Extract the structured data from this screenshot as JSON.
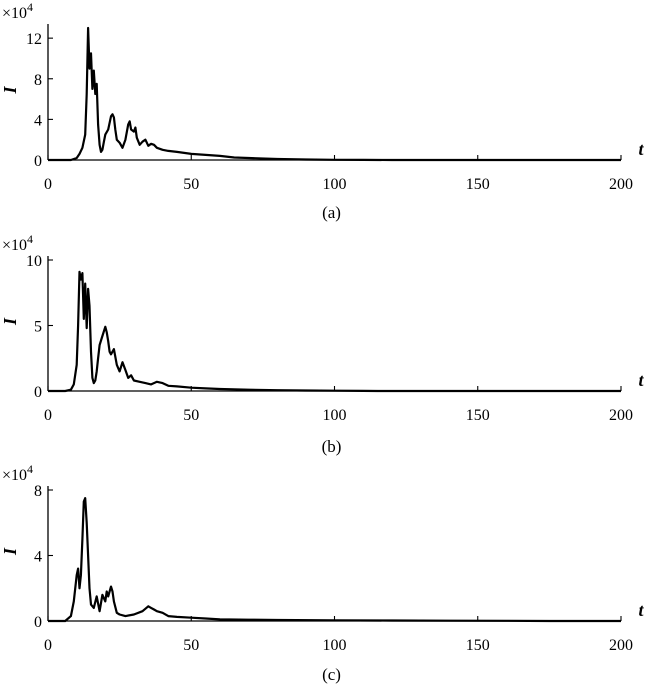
{
  "chart_data": [
    {
      "type": "line",
      "caption": "(a)",
      "xlabel": "t",
      "ylabel": "I",
      "multiplier": "×10",
      "multiplier_exp": "4",
      "xlim": [
        0,
        200
      ],
      "ylim": [
        0,
        13
      ],
      "xticks": [
        0,
        50,
        100,
        150,
        200
      ],
      "yticks": [
        0,
        4,
        8,
        12
      ],
      "series": [
        {
          "x": [
            0,
            8,
            10,
            11,
            12,
            13,
            13.5,
            14,
            14.5,
            15,
            15.5,
            16,
            16.5,
            17,
            17.5,
            18,
            18.5,
            19,
            19.5,
            20,
            21,
            22,
            22.5,
            23,
            23.5,
            24,
            25,
            26,
            27,
            28,
            28.5,
            29,
            30,
            30.5,
            31,
            32,
            33,
            34,
            35,
            36,
            37,
            38,
            40,
            42,
            45,
            50,
            55,
            60,
            65,
            70,
            80,
            90,
            100,
            110,
            120,
            200
          ],
          "y": [
            0,
            0,
            0.2,
            0.6,
            1.2,
            2.5,
            6.5,
            13.0,
            9.0,
            10.5,
            7.0,
            8.8,
            6.5,
            7.5,
            3.5,
            1.5,
            0.8,
            1.0,
            1.8,
            2.5,
            3.0,
            4.3,
            4.5,
            4.2,
            3.0,
            2.0,
            1.7,
            1.2,
            2.0,
            3.5,
            3.8,
            3.0,
            2.8,
            3.2,
            2.2,
            1.5,
            1.8,
            2.0,
            1.4,
            1.6,
            1.5,
            1.2,
            1.0,
            0.9,
            0.8,
            0.6,
            0.5,
            0.4,
            0.25,
            0.2,
            0.1,
            0.05,
            0.02,
            0.01,
            0,
            0
          ]
        }
      ]
    },
    {
      "type": "line",
      "caption": "(b)",
      "xlabel": "t",
      "ylabel": "I",
      "multiplier": "×10",
      "multiplier_exp": "4",
      "xlim": [
        0,
        200
      ],
      "ylim": [
        0,
        10
      ],
      "xticks": [
        0,
        50,
        100,
        150,
        200
      ],
      "yticks": [
        0,
        5,
        10
      ],
      "series": [
        {
          "x": [
            0,
            6,
            8,
            9,
            10,
            10.5,
            11,
            11.5,
            12,
            12.5,
            13,
            13.5,
            14,
            14.5,
            15,
            15.5,
            16,
            16.5,
            17,
            17.5,
            18,
            19,
            20,
            20.5,
            21,
            21.5,
            22,
            23,
            24,
            25,
            26,
            27,
            28,
            29,
            30,
            32,
            34,
            36,
            38,
            40,
            42,
            45,
            50,
            55,
            60,
            70,
            80,
            90,
            100,
            110,
            115,
            200
          ],
          "y": [
            0,
            0,
            0.1,
            0.5,
            2.0,
            5.0,
            9.1,
            8.5,
            9.0,
            5.5,
            8.2,
            4.8,
            7.8,
            6.5,
            3.0,
            1.0,
            0.6,
            0.8,
            1.5,
            2.5,
            3.5,
            4.2,
            4.9,
            4.5,
            3.8,
            3.0,
            2.8,
            3.2,
            2.0,
            1.5,
            2.2,
            1.6,
            1.0,
            1.2,
            0.8,
            0.7,
            0.6,
            0.5,
            0.7,
            0.6,
            0.4,
            0.35,
            0.25,
            0.2,
            0.15,
            0.1,
            0.06,
            0.04,
            0.02,
            0.01,
            0,
            0
          ]
        }
      ]
    },
    {
      "type": "line",
      "caption": "(c)",
      "xlabel": "t",
      "ylabel": "I",
      "multiplier": "×10",
      "multiplier_exp": "4",
      "xlim": [
        0,
        200
      ],
      "ylim": [
        0,
        8
      ],
      "xticks": [
        0,
        50,
        100,
        150,
        200
      ],
      "yticks": [
        0,
        4,
        8
      ],
      "series": [
        {
          "x": [
            0,
            6,
            8,
            9,
            10,
            10.5,
            11,
            11.5,
            12,
            12.5,
            13,
            13.5,
            14,
            14.5,
            15,
            16,
            17,
            18,
            19,
            20,
            20.5,
            21,
            22,
            22.5,
            23,
            24,
            25,
            27,
            30,
            33,
            35,
            36,
            37,
            38,
            40,
            42,
            45,
            50,
            55,
            60,
            70,
            80,
            100,
            120,
            140,
            160,
            175,
            200
          ],
          "y": [
            0,
            0,
            0.3,
            1.2,
            2.8,
            3.2,
            2.0,
            2.8,
            5.0,
            7.3,
            7.5,
            6.0,
            4.0,
            2.0,
            1.0,
            0.8,
            1.5,
            0.6,
            1.6,
            1.2,
            1.8,
            1.5,
            2.1,
            1.8,
            1.2,
            0.5,
            0.4,
            0.3,
            0.4,
            0.6,
            0.9,
            0.8,
            0.7,
            0.6,
            0.5,
            0.3,
            0.25,
            0.2,
            0.15,
            0.1,
            0.08,
            0.06,
            0.04,
            0.03,
            0.02,
            0.01,
            0,
            0
          ]
        }
      ]
    }
  ]
}
